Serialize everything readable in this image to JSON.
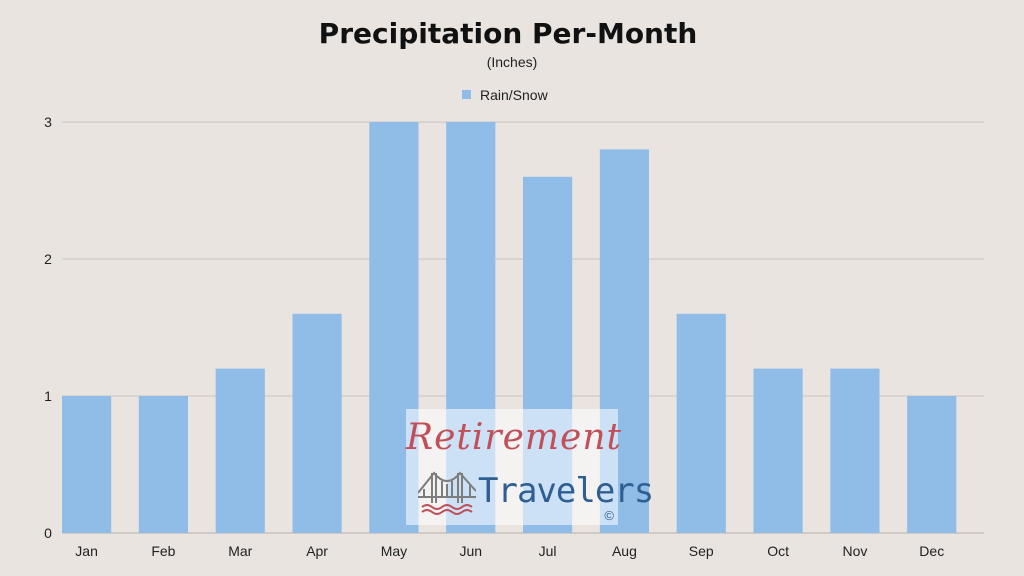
{
  "chart_data": {
    "type": "bar",
    "title": "Precipitation Per-Month",
    "subtitle": "(Inches)",
    "categories": [
      "Jan",
      "Feb",
      "Mar",
      "Apr",
      "May",
      "Jun",
      "Jul",
      "Aug",
      "Sep",
      "Oct",
      "Nov",
      "Dec"
    ],
    "series": [
      {
        "name": "Rain/Snow",
        "values": [
          1,
          1,
          1.2,
          1.6,
          3,
          3,
          2.6,
          2.8,
          1.6,
          1.2,
          1.2,
          1
        ],
        "color": "#8fbde8"
      }
    ],
    "yticks": [
      0,
      1,
      2,
      3
    ],
    "ylim": [
      0,
      3
    ],
    "grid": true,
    "legend": "top-center"
  },
  "watermark": {
    "line1": "Retirement",
    "line2": "Travelers",
    "copyright": "©",
    "icon": "golden-gate-bridge-icon"
  }
}
